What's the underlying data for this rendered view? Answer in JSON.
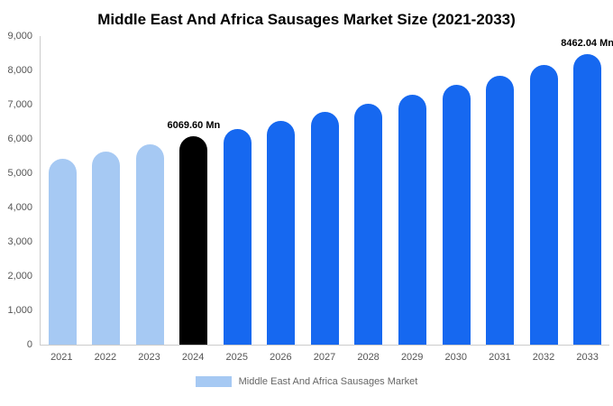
{
  "chart_data": {
    "type": "bar",
    "title": "Middle East And Africa Sausages Market Size (2021-2033)",
    "unit": "Mn",
    "categories": [
      "2021",
      "2022",
      "2023",
      "2024",
      "2025",
      "2026",
      "2027",
      "2028",
      "2029",
      "2030",
      "2031",
      "2032",
      "2033"
    ],
    "values": [
      5434,
      5640,
      5852,
      6069.6,
      6297,
      6532,
      6778,
      7032,
      7296,
      7570,
      7854,
      8149,
      8462.04
    ],
    "ylim": [
      0,
      9000
    ],
    "y_ticks": [
      "0",
      "1,000",
      "2,000",
      "3,000",
      "4,000",
      "5,000",
      "6,000",
      "7,000",
      "8,000",
      "9,000"
    ],
    "grid": false,
    "bar_styles": [
      "past",
      "past",
      "past",
      "current",
      "forecast",
      "forecast",
      "forecast",
      "forecast",
      "forecast",
      "forecast",
      "forecast",
      "forecast",
      "forecast"
    ],
    "annotations": [
      {
        "index": 3,
        "text": "6069.60 Mn"
      },
      {
        "index": 12,
        "text": "8462.04 Mn"
      }
    ],
    "legend": [
      {
        "label": "Middle East And Africa Sausages Market",
        "swatch": "past",
        "position": "bottom"
      }
    ]
  },
  "colors": {
    "past": "#a6c9f3",
    "current": "#000000",
    "forecast": "#1668f0",
    "axis_line": "#cccccc",
    "axis_text": "#555555",
    "legend_text": "#666666",
    "annotation_text": "#000000"
  }
}
